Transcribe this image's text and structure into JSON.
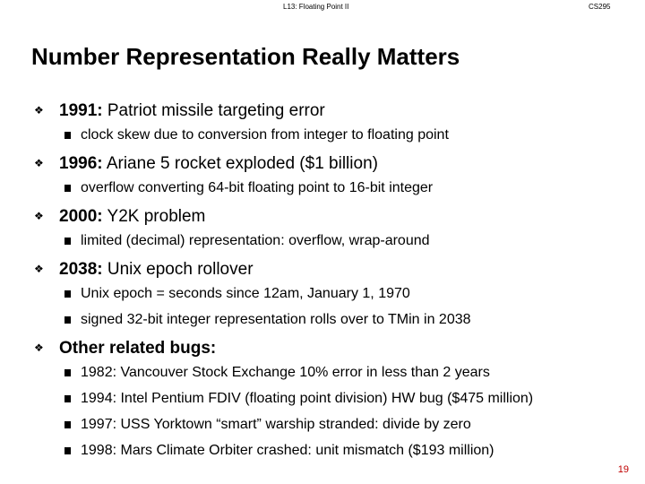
{
  "header": {
    "left": "L13:  Floating Point II",
    "right": "CS295"
  },
  "title": "Number Representation Really Matters",
  "bullets": [
    {
      "lead": "1991:",
      "text": " Patriot missile targeting error",
      "items": [
        "clock skew due to conversion from integer to floating point"
      ]
    },
    {
      "lead": "1996:",
      "text": " Ariane 5 rocket exploded  ($1 billion)",
      "items": [
        "overflow converting 64-bit floating point to 16-bit integer"
      ]
    },
    {
      "lead": "2000:",
      "text": " Y2K problem",
      "items": [
        "limited (decimal) representation: overflow, wrap-around"
      ]
    },
    {
      "lead": "2038:",
      "text": " Unix epoch rollover",
      "items": [
        "Unix epoch = seconds since 12am, January 1, 1970",
        "signed 32-bit integer representation rolls over to TMin in 2038"
      ]
    },
    {
      "lead": "Other related bugs:",
      "items": [
        "1982: Vancouver Stock Exchange 10% error in less than 2 years",
        "1994: Intel Pentium FDIV (floating point division) HW bug ($475 million)",
        "1997: USS Yorktown “smart” warship stranded: divide by zero",
        "1998: Mars Climate Orbiter crashed: unit mismatch ($193 million)"
      ]
    }
  ],
  "page_number": "19"
}
